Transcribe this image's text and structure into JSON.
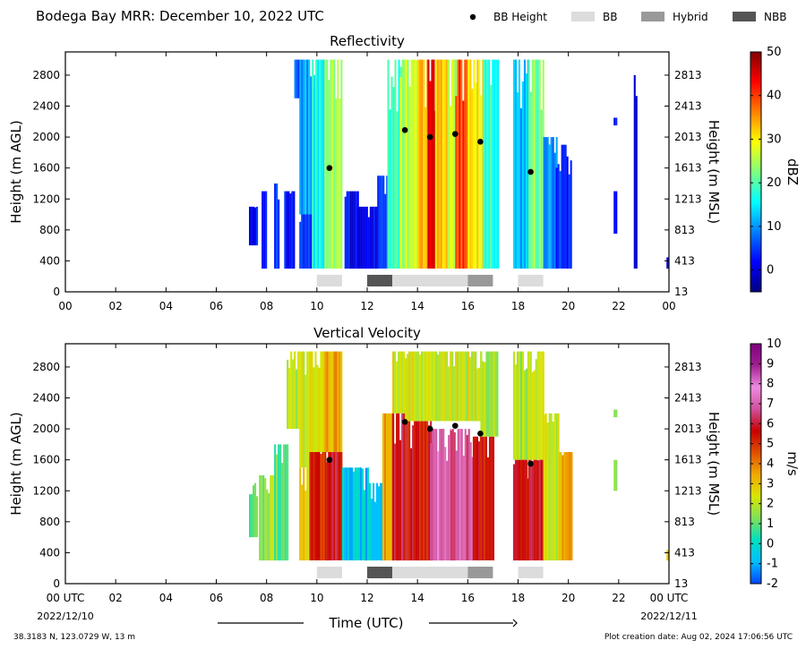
{
  "figure": {
    "title": "Bodega Bay MRR:  December 10, 2022 UTC",
    "legend": [
      {
        "label": "BB Height",
        "kind": "marker",
        "color": "#000000"
      },
      {
        "label": "BB",
        "kind": "box",
        "color": "#dcdcdc"
      },
      {
        "label": "Hybrid",
        "kind": "box",
        "color": "#999999"
      },
      {
        "label": "NBB",
        "kind": "box",
        "color": "#555555"
      }
    ],
    "xlabel": "Time (UTC)",
    "date_start": "2022/12/10",
    "date_end": "2022/12/11",
    "location": "38.3183 N, 123.0729 W, 13 m",
    "creation": "Plot creation date: Aug 02, 2024 17:06:56 UTC"
  },
  "chart_data": [
    {
      "type": "heatmap",
      "title": "Reflectivity",
      "ylabel": "Height (m AGL)",
      "ylabel_right": "Height (m MSL)",
      "yticks": [
        0,
        400,
        800,
        1200,
        1600,
        2000,
        2400,
        2800
      ],
      "yticks_right": [
        "13",
        "413",
        "813",
        "1213",
        "1613",
        "2013",
        "2413",
        "2813"
      ],
      "xticks": [
        "00",
        "02",
        "04",
        "06",
        "08",
        "10",
        "12",
        "14",
        "16",
        "18",
        "20",
        "22",
        "00"
      ],
      "xlim_hours": [
        0,
        24
      ],
      "ylim": [
        0,
        3100
      ],
      "colorbar": {
        "label": "dBZ",
        "min": -5,
        "max": 50,
        "ticks": [
          0,
          10,
          20,
          30,
          40,
          50
        ],
        "colors": [
          "#00007f",
          "#0000ff",
          "#007fff",
          "#00ffff",
          "#7fff7f",
          "#ffff00",
          "#ff7f00",
          "#ff0000",
          "#7f0000"
        ]
      },
      "bb_heights": [
        {
          "time": 10.5,
          "height": 1600
        },
        {
          "time": 13.5,
          "height": 2090
        },
        {
          "time": 14.5,
          "height": 2000
        },
        {
          "time": 15.5,
          "height": 2040
        },
        {
          "time": 16.5,
          "height": 1940
        },
        {
          "time": 18.5,
          "height": 1550
        }
      ],
      "type_bars": [
        {
          "start": 10.0,
          "end": 11.0,
          "type": "BB"
        },
        {
          "start": 12.0,
          "end": 13.0,
          "type": "NBB"
        },
        {
          "start": 13.0,
          "end": 16.0,
          "type": "BB"
        },
        {
          "start": 16.0,
          "end": 17.0,
          "type": "Hybrid"
        },
        {
          "start": 18.0,
          "end": 19.0,
          "type": "BB"
        }
      ],
      "precip_blocks": [
        {
          "start": 7.3,
          "end": 7.6,
          "ymin": 600,
          "ymax": 1100,
          "value": 2
        },
        {
          "start": 7.8,
          "end": 8.0,
          "ymin": 300,
          "ymax": 1300,
          "value": 2
        },
        {
          "start": 8.3,
          "end": 8.5,
          "ymin": 300,
          "ymax": 1400,
          "value": 4
        },
        {
          "start": 8.7,
          "end": 9.1,
          "ymin": 300,
          "ymax": 1300,
          "value": 3
        },
        {
          "start": 9.1,
          "end": 9.3,
          "ymin": 2500,
          "ymax": 3000,
          "value": 6
        },
        {
          "start": 9.3,
          "end": 9.8,
          "ymin": 1000,
          "ymax": 3000,
          "value": 10
        },
        {
          "start": 9.3,
          "end": 9.8,
          "ymin": 300,
          "ymax": 1000,
          "value": 4
        },
        {
          "start": 9.8,
          "end": 10.3,
          "ymin": 300,
          "ymax": 3000,
          "value": 16
        },
        {
          "start": 10.3,
          "end": 11.0,
          "ymin": 300,
          "ymax": 3000,
          "value": 24
        },
        {
          "start": 11.1,
          "end": 11.6,
          "ymin": 300,
          "ymax": 1300,
          "value": 1
        },
        {
          "start": 11.6,
          "end": 12.4,
          "ymin": 300,
          "ymax": 1100,
          "value": 2
        },
        {
          "start": 12.4,
          "end": 12.8,
          "ymin": 300,
          "ymax": 1500,
          "value": 6
        },
        {
          "start": 12.8,
          "end": 13.3,
          "ymin": 300,
          "ymax": 3000,
          "value": 18
        },
        {
          "start": 13.3,
          "end": 14.0,
          "ymin": 300,
          "ymax": 3000,
          "value": 26
        },
        {
          "start": 14.0,
          "end": 14.4,
          "ymin": 300,
          "ymax": 3000,
          "value": 34
        },
        {
          "start": 14.4,
          "end": 14.7,
          "ymin": 300,
          "ymax": 3000,
          "value": 43
        },
        {
          "start": 14.7,
          "end": 15.2,
          "ymin": 300,
          "ymax": 3000,
          "value": 32
        },
        {
          "start": 15.2,
          "end": 15.5,
          "ymin": 300,
          "ymax": 3000,
          "value": 26
        },
        {
          "start": 15.5,
          "end": 16.0,
          "ymin": 300,
          "ymax": 3000,
          "value": 40
        },
        {
          "start": 16.0,
          "end": 16.6,
          "ymin": 300,
          "ymax": 3000,
          "value": 30
        },
        {
          "start": 16.6,
          "end": 17.2,
          "ymin": 300,
          "ymax": 3000,
          "value": 18
        },
        {
          "start": 17.8,
          "end": 18.4,
          "ymin": 300,
          "ymax": 3000,
          "value": 12
        },
        {
          "start": 18.4,
          "end": 19.0,
          "ymin": 300,
          "ymax": 3000,
          "value": 22
        },
        {
          "start": 19.0,
          "end": 19.5,
          "ymin": 300,
          "ymax": 2000,
          "value": 9
        },
        {
          "start": 19.5,
          "end": 20.1,
          "ymin": 300,
          "ymax": 1900,
          "value": 4
        },
        {
          "start": 21.8,
          "end": 21.9,
          "ymin": 750,
          "ymax": 1300,
          "value": 3
        },
        {
          "start": 21.8,
          "end": 21.9,
          "ymin": 2150,
          "ymax": 2250,
          "value": 3
        },
        {
          "start": 22.6,
          "end": 22.7,
          "ymin": 300,
          "ymax": 2800,
          "value": 2
        },
        {
          "start": 23.9,
          "end": 24.0,
          "ymin": 300,
          "ymax": 450,
          "value": 3
        }
      ]
    },
    {
      "type": "heatmap",
      "title": "Vertical Velocity",
      "ylabel": "Height (m AGL)",
      "ylabel_right": "Height (m MSL)",
      "yticks": [
        0,
        400,
        800,
        1200,
        1600,
        2000,
        2400,
        2800
      ],
      "yticks_right": [
        "13",
        "413",
        "813",
        "1213",
        "1613",
        "2013",
        "2413",
        "2813"
      ],
      "xticks": [
        "00 UTC",
        "02",
        "04",
        "06",
        "08",
        "10",
        "12",
        "14",
        "16",
        "18",
        "20",
        "22",
        "00 UTC"
      ],
      "xlim_hours": [
        0,
        24
      ],
      "ylim": [
        0,
        3100
      ],
      "colorbar": {
        "label": "m/s",
        "min": -2,
        "max": 10,
        "ticks": [
          -2,
          -1,
          0,
          1,
          2,
          3,
          4,
          5,
          6,
          7,
          8,
          9,
          10
        ],
        "colors": [
          "#0044ff",
          "#00bfff",
          "#00e0c0",
          "#7fe05a",
          "#d8e600",
          "#f2a900",
          "#e05000",
          "#c80000",
          "#d0509a",
          "#f08ae0",
          "#a02090",
          "#7f007f"
        ]
      },
      "bb_heights": [
        {
          "time": 10.5,
          "height": 1600
        },
        {
          "time": 13.5,
          "height": 2090
        },
        {
          "time": 14.5,
          "height": 2000
        },
        {
          "time": 15.5,
          "height": 2040
        },
        {
          "time": 16.5,
          "height": 1940
        },
        {
          "time": 18.5,
          "height": 1550
        }
      ],
      "type_bars": [
        {
          "start": 10.0,
          "end": 11.0,
          "type": "BB"
        },
        {
          "start": 12.0,
          "end": 13.0,
          "type": "NBB"
        },
        {
          "start": 13.0,
          "end": 16.0,
          "type": "BB"
        },
        {
          "start": 16.0,
          "end": 17.0,
          "type": "Hybrid"
        },
        {
          "start": 18.0,
          "end": 19.0,
          "type": "BB"
        }
      ],
      "precip_blocks": [
        {
          "start": 7.3,
          "end": 7.6,
          "ymin": 600,
          "ymax": 1300,
          "value": 1
        },
        {
          "start": 7.7,
          "end": 8.3,
          "ymin": 300,
          "ymax": 1400,
          "value": 1.5
        },
        {
          "start": 8.3,
          "end": 8.8,
          "ymin": 300,
          "ymax": 1800,
          "value": 1
        },
        {
          "start": 8.8,
          "end": 9.3,
          "ymin": 2000,
          "ymax": 3000,
          "value": 2
        },
        {
          "start": 9.3,
          "end": 9.7,
          "ymin": 1500,
          "ymax": 3000,
          "value": 2.3
        },
        {
          "start": 9.3,
          "end": 9.7,
          "ymin": 300,
          "ymax": 1500,
          "value": 3
        },
        {
          "start": 9.7,
          "end": 10.3,
          "ymin": 1700,
          "ymax": 3000,
          "value": 2.6
        },
        {
          "start": 9.7,
          "end": 10.3,
          "ymin": 300,
          "ymax": 1700,
          "value": 5
        },
        {
          "start": 10.3,
          "end": 11.0,
          "ymin": 1700,
          "ymax": 3000,
          "value": 3.5
        },
        {
          "start": 10.3,
          "end": 11.0,
          "ymin": 300,
          "ymax": 1700,
          "value": 5.8
        },
        {
          "start": 11.0,
          "end": 12.0,
          "ymin": 300,
          "ymax": 1500,
          "value": -0.6
        },
        {
          "start": 12.0,
          "end": 12.6,
          "ymin": 300,
          "ymax": 1300,
          "value": -0.5
        },
        {
          "start": 12.6,
          "end": 13.0,
          "ymin": 300,
          "ymax": 2200,
          "value": 3.5
        },
        {
          "start": 13.0,
          "end": 13.5,
          "ymin": 2200,
          "ymax": 3000,
          "value": 2.4
        },
        {
          "start": 13.0,
          "end": 13.5,
          "ymin": 300,
          "ymax": 2200,
          "value": 5.8
        },
        {
          "start": 13.5,
          "end": 16.5,
          "ymin": 2100,
          "ymax": 3000,
          "value": 2.2
        },
        {
          "start": 13.5,
          "end": 14.5,
          "ymin": 300,
          "ymax": 2100,
          "value": 5.6
        },
        {
          "start": 14.5,
          "end": 15.3,
          "ymin": 300,
          "ymax": 2000,
          "value": 7.2
        },
        {
          "start": 15.3,
          "end": 16.2,
          "ymin": 300,
          "ymax": 2000,
          "value": 6.8
        },
        {
          "start": 16.2,
          "end": 17.0,
          "ymin": 300,
          "ymax": 1900,
          "value": 5.5
        },
        {
          "start": 16.5,
          "end": 17.2,
          "ymin": 1900,
          "ymax": 3000,
          "value": 2.0
        },
        {
          "start": 17.8,
          "end": 18.4,
          "ymin": 1600,
          "ymax": 3000,
          "value": 1.8
        },
        {
          "start": 17.8,
          "end": 18.4,
          "ymin": 300,
          "ymax": 1600,
          "value": 5.5
        },
        {
          "start": 18.4,
          "end": 19.0,
          "ymin": 1600,
          "ymax": 3000,
          "value": 2.3
        },
        {
          "start": 18.4,
          "end": 19.0,
          "ymin": 300,
          "ymax": 1600,
          "value": 5.8
        },
        {
          "start": 19.0,
          "end": 19.6,
          "ymin": 300,
          "ymax": 2200,
          "value": 2.0
        },
        {
          "start": 19.6,
          "end": 20.1,
          "ymin": 300,
          "ymax": 1700,
          "value": 3.2
        },
        {
          "start": 21.8,
          "end": 21.9,
          "ymin": 1200,
          "ymax": 1600,
          "value": 1.5
        },
        {
          "start": 21.8,
          "end": 21.9,
          "ymin": 2150,
          "ymax": 2250,
          "value": 1.5
        },
        {
          "start": 23.9,
          "end": 24.0,
          "ymin": 300,
          "ymax": 450,
          "value": 3
        }
      ]
    }
  ]
}
